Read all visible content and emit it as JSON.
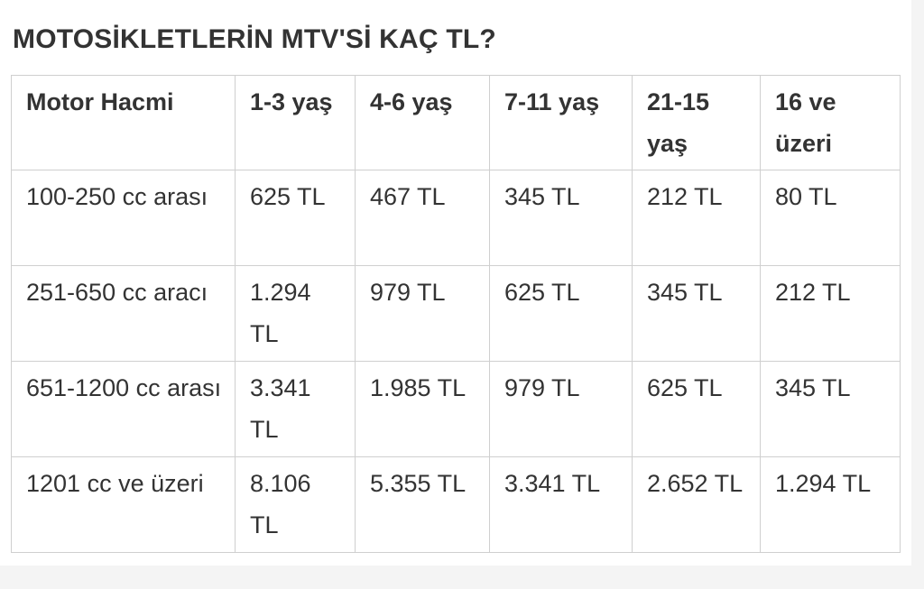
{
  "title": "MOTOSİKLETLERİN MTV'Sİ KAÇ TL?",
  "table": {
    "headers": [
      "Motor Hacmi",
      "1-3 yaş",
      "4-6 yaş",
      "7-11 yaş",
      "21-15 yaş",
      "16 ve üzeri"
    ],
    "rows": [
      [
        "100-250 cc arası",
        "625 TL",
        "467 TL",
        "345 TL",
        "212 TL",
        "80 TL"
      ],
      [
        "251-650 cc aracı",
        "1.294 TL",
        "979 TL",
        "625 TL",
        "345 TL",
        "212 TL"
      ],
      [
        "651-1200 cc arası",
        "3.341 TL",
        "1.985 TL",
        "979 TL",
        "625 TL",
        "345 TL"
      ],
      [
        "1201 cc ve üzeri",
        "8.106 TL",
        "5.355 TL",
        "3.341 TL",
        "2.652 TL",
        "1.294 TL"
      ]
    ]
  }
}
